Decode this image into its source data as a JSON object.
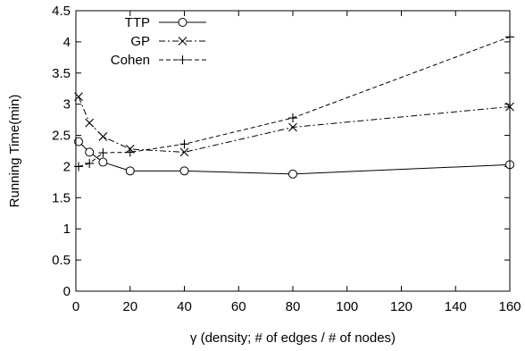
{
  "chart_data": {
    "type": "line",
    "xlabel": "γ (density; # of edges / # of nodes)",
    "ylabel": "Running Time(min)",
    "xlim": [
      0,
      160
    ],
    "ylim": [
      0,
      4.5
    ],
    "xticks": [
      0,
      20,
      40,
      60,
      80,
      100,
      120,
      140,
      160
    ],
    "yticks": [
      0,
      0.5,
      1,
      1.5,
      2,
      2.5,
      3,
      3.5,
      4,
      4.5
    ],
    "xtick_labels": [
      "0",
      "20",
      "40",
      "60",
      "80",
      "100",
      "120",
      "140",
      "160"
    ],
    "ytick_labels": [
      "0",
      "0.5",
      "1",
      "1.5",
      "2",
      "2.5",
      "3",
      "3.5",
      "4",
      "4.5"
    ],
    "grid": false,
    "legend_position": "top-left",
    "series": [
      {
        "name": "TTP",
        "marker": "circle",
        "line_style": "solid",
        "x": [
          1,
          5,
          10,
          20,
          40,
          80,
          160
        ],
        "y": [
          2.4,
          2.23,
          2.07,
          1.93,
          1.93,
          1.88,
          2.03
        ]
      },
      {
        "name": "GP",
        "marker": "cross",
        "line_style": "dash-dot",
        "x": [
          1,
          5,
          10,
          20,
          40,
          80,
          160
        ],
        "y": [
          3.12,
          2.7,
          2.48,
          2.28,
          2.23,
          2.63,
          2.96
        ]
      },
      {
        "name": "Cohen",
        "marker": "plus",
        "line_style": "dashed",
        "x": [
          1,
          5,
          10,
          20,
          40,
          80,
          160
        ],
        "y": [
          2.0,
          2.05,
          2.22,
          2.23,
          2.36,
          2.78,
          4.08
        ]
      }
    ]
  }
}
